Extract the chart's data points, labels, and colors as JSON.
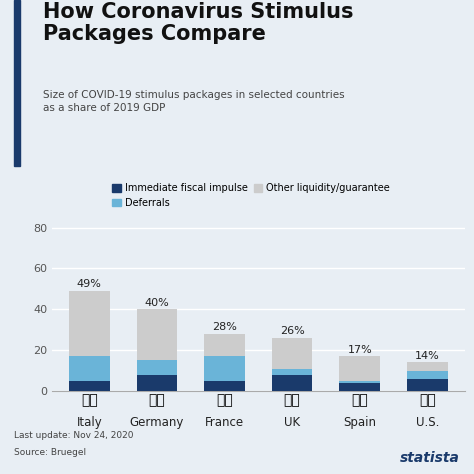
{
  "title": "How Coronavirus Stimulus\nPackages Compare",
  "subtitle": "Size of COVID-19 stimulus packages in selected countries\nas a share of 2019 GDP",
  "categories": [
    "Italy",
    "Germany",
    "France",
    "UK",
    "Spain",
    "U.S."
  ],
  "totals_pct": [
    "49%",
    "40%",
    "28%",
    "26%",
    "17%",
    "14%"
  ],
  "fiscal_impulse": [
    5,
    8,
    5,
    8,
    4,
    6
  ],
  "deferrals": [
    12,
    7,
    12,
    3,
    1,
    4
  ],
  "other_liquidity": [
    32,
    25,
    11,
    15,
    12,
    4
  ],
  "color_fiscal": "#1a3a6b",
  "color_deferrals": "#6ab4d8",
  "color_other": "#cccccc",
  "background_color": "#e8eef4",
  "yticks": [
    0,
    20,
    40,
    60,
    80
  ],
  "ylim": [
    0,
    87
  ],
  "footer_line1": "Last update: Nov 24, 2020",
  "footer_line2": "Source: Bruegel",
  "accent_color": "#1a3a6b",
  "legend_labels": [
    "Immediate fiscal impulse",
    "Deferrals",
    "Other liquidity/guarantee"
  ]
}
